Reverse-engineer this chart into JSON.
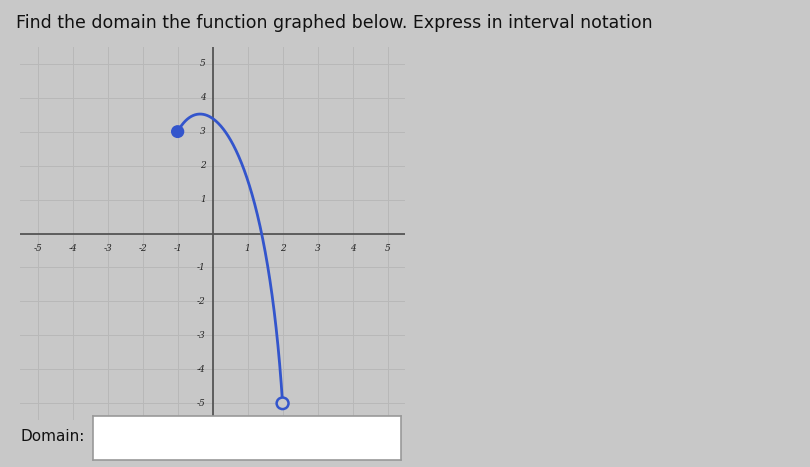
{
  "title": "Find the domain the function graphed below. Express in interval notation",
  "domain_label": "Domain:",
  "xlim": [
    -5.5,
    5.5
  ],
  "ylim": [
    -5.5,
    5.5
  ],
  "xticks": [
    -5,
    -4,
    -3,
    -2,
    -1,
    1,
    2,
    3,
    4,
    5
  ],
  "yticks": [
    -5,
    -4,
    -3,
    -2,
    -1,
    1,
    2,
    3,
    4,
    5
  ],
  "curve_color": "#3355cc",
  "closed_point": [
    -1,
    3
  ],
  "open_point": [
    2,
    -5
  ],
  "bezier_P1": [
    -0.2,
    4.5
  ],
  "bezier_P2": [
    1.5,
    3.0
  ],
  "grid_color": "#b8b8b8",
  "background_color": "#c8c8c8",
  "axes_color": "#555555",
  "tick_label_color": "#222222",
  "title_color": "#111111",
  "title_fontsize": 12.5,
  "domain_box_color": "#ffffff"
}
